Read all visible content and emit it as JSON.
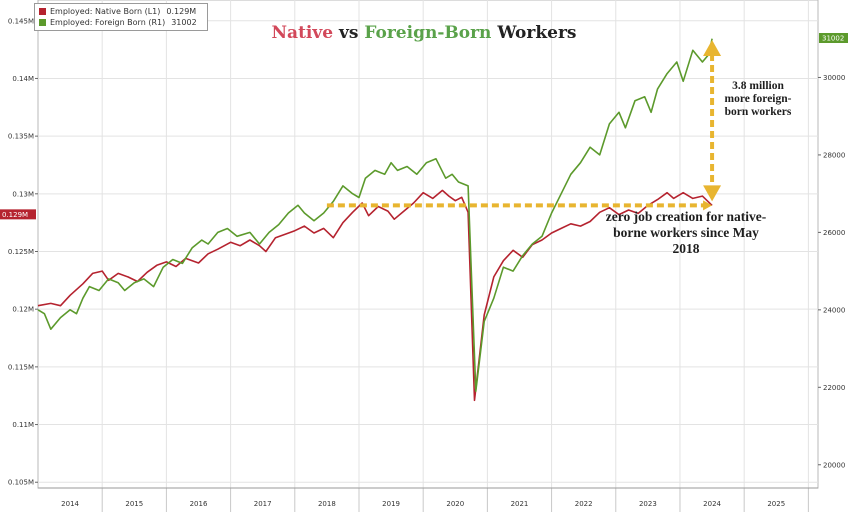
{
  "title": {
    "native_word": "Native",
    "vs_word": "vs",
    "foreign_word": "Foreign-Born",
    "tail_word": "Workers"
  },
  "legend": {
    "entries": [
      {
        "label": "Employed: Native Born (L1)",
        "value": "0.129M",
        "color": "#b5232f"
      },
      {
        "label": "Employed: Foreign Born (R1)",
        "value": "31002",
        "color": "#5c9a2c"
      }
    ]
  },
  "annotations": {
    "more_foreign": "3.8 million more foreign-born workers",
    "zero_native": "zero job creation for native-borne workers since May 2018"
  },
  "current_value_tags": {
    "left": "0.129M",
    "right": "31002"
  },
  "colors": {
    "native_series": "#b5232f",
    "foreign_series": "#5c9a2c",
    "annotation_line": "#e8b530",
    "left_tag_bg": "#b5232f",
    "right_tag_bg": "#5c9a2c"
  },
  "chart_data": {
    "type": "line",
    "x_ticks": [
      "2014",
      "2015",
      "2016",
      "2017",
      "2018",
      "2019",
      "2020",
      "2021",
      "2022",
      "2023",
      "2024",
      "2025"
    ],
    "xlim": [
      2013.5,
      2025.65
    ],
    "y_left": {
      "ticks": [
        0.105,
        0.11,
        0.115,
        0.12,
        0.125,
        0.13,
        0.135,
        0.14,
        0.145
      ],
      "tick_labels": [
        "0.105M",
        "0.11M",
        "0.115M",
        "0.12M",
        "0.125M",
        "0.13M",
        "0.135M",
        "0.14M",
        "0.145M"
      ],
      "range": [
        0.1045,
        0.1468
      ]
    },
    "y_right": {
      "ticks": [
        20000,
        22000,
        24000,
        26000,
        28000,
        30000
      ],
      "tick_labels": [
        "20000",
        "22000",
        "24000",
        "26000",
        "28000",
        "30000"
      ],
      "range": [
        19400,
        32000
      ]
    },
    "grid": true,
    "legend_position": "top-left",
    "series": [
      {
        "name": "Employed: Native Born (L1)",
        "axis": "left",
        "points": [
          [
            2013.5,
            0.1203
          ],
          [
            2013.7,
            0.1205
          ],
          [
            2013.85,
            0.1203
          ],
          [
            2014.0,
            0.1212
          ],
          [
            2014.2,
            0.1222
          ],
          [
            2014.35,
            0.1231
          ],
          [
            2014.5,
            0.1233
          ],
          [
            2014.6,
            0.1225
          ],
          [
            2014.75,
            0.1231
          ],
          [
            2014.9,
            0.1228
          ],
          [
            2015.05,
            0.1224
          ],
          [
            2015.2,
            0.1232
          ],
          [
            2015.35,
            0.1238
          ],
          [
            2015.5,
            0.1241
          ],
          [
            2015.65,
            0.1237
          ],
          [
            2015.8,
            0.1244
          ],
          [
            2016.0,
            0.124
          ],
          [
            2016.15,
            0.1248
          ],
          [
            2016.3,
            0.1252
          ],
          [
            2016.5,
            0.1258
          ],
          [
            2016.65,
            0.1255
          ],
          [
            2016.8,
            0.126
          ],
          [
            2016.95,
            0.1255
          ],
          [
            2017.05,
            0.125
          ],
          [
            2017.2,
            0.1262
          ],
          [
            2017.35,
            0.1265
          ],
          [
            2017.5,
            0.1268
          ],
          [
            2017.65,
            0.1272
          ],
          [
            2017.8,
            0.1266
          ],
          [
            2017.95,
            0.127
          ],
          [
            2018.1,
            0.1262
          ],
          [
            2018.25,
            0.1275
          ],
          [
            2018.4,
            0.1284
          ],
          [
            2018.55,
            0.1292
          ],
          [
            2018.65,
            0.1281
          ],
          [
            2018.8,
            0.1289
          ],
          [
            2018.95,
            0.1285
          ],
          [
            2019.05,
            0.1278
          ],
          [
            2019.2,
            0.1285
          ],
          [
            2019.35,
            0.1292
          ],
          [
            2019.5,
            0.1301
          ],
          [
            2019.65,
            0.1296
          ],
          [
            2019.8,
            0.1303
          ],
          [
            2019.9,
            0.1298
          ],
          [
            2020.0,
            0.1294
          ],
          [
            2020.1,
            0.1297
          ],
          [
            2020.2,
            0.1284
          ],
          [
            2020.3,
            0.1121
          ],
          [
            2020.45,
            0.1195
          ],
          [
            2020.6,
            0.1228
          ],
          [
            2020.75,
            0.1242
          ],
          [
            2020.9,
            0.1251
          ],
          [
            2021.05,
            0.1245
          ],
          [
            2021.2,
            0.1256
          ],
          [
            2021.35,
            0.126
          ],
          [
            2021.5,
            0.1266
          ],
          [
            2021.65,
            0.127
          ],
          [
            2021.8,
            0.1274
          ],
          [
            2021.95,
            0.1272
          ],
          [
            2022.1,
            0.1276
          ],
          [
            2022.25,
            0.1284
          ],
          [
            2022.4,
            0.1288
          ],
          [
            2022.55,
            0.1282
          ],
          [
            2022.7,
            0.1286
          ],
          [
            2022.85,
            0.1283
          ],
          [
            2023.0,
            0.129
          ],
          [
            2023.15,
            0.1295
          ],
          [
            2023.3,
            0.1301
          ],
          [
            2023.4,
            0.1296
          ],
          [
            2023.55,
            0.1301
          ],
          [
            2023.7,
            0.1296
          ],
          [
            2023.85,
            0.1298
          ],
          [
            2024.0,
            0.129
          ]
        ]
      },
      {
        "name": "Employed: Foreign Born (R1)",
        "axis": "right",
        "points": [
          [
            2013.5,
            24000
          ],
          [
            2013.6,
            23900
          ],
          [
            2013.7,
            23500
          ],
          [
            2013.85,
            23800
          ],
          [
            2014.0,
            24000
          ],
          [
            2014.1,
            23900
          ],
          [
            2014.2,
            24300
          ],
          [
            2014.3,
            24600
          ],
          [
            2014.45,
            24500
          ],
          [
            2014.6,
            24800
          ],
          [
            2014.75,
            24700
          ],
          [
            2014.85,
            24500
          ],
          [
            2015.0,
            24700
          ],
          [
            2015.15,
            24800
          ],
          [
            2015.3,
            24600
          ],
          [
            2015.45,
            25100
          ],
          [
            2015.6,
            25300
          ],
          [
            2015.75,
            25200
          ],
          [
            2015.9,
            25600
          ],
          [
            2016.05,
            25800
          ],
          [
            2016.15,
            25700
          ],
          [
            2016.3,
            26000
          ],
          [
            2016.45,
            26100
          ],
          [
            2016.6,
            25900
          ],
          [
            2016.8,
            26000
          ],
          [
            2016.95,
            25700
          ],
          [
            2017.1,
            26000
          ],
          [
            2017.25,
            26200
          ],
          [
            2017.4,
            26500
          ],
          [
            2017.55,
            26700
          ],
          [
            2017.65,
            26500
          ],
          [
            2017.8,
            26300
          ],
          [
            2017.95,
            26500
          ],
          [
            2018.1,
            26800
          ],
          [
            2018.25,
            27200
          ],
          [
            2018.4,
            27000
          ],
          [
            2018.5,
            26900
          ],
          [
            2018.6,
            27400
          ],
          [
            2018.75,
            27600
          ],
          [
            2018.9,
            27500
          ],
          [
            2019.0,
            27800
          ],
          [
            2019.1,
            27600
          ],
          [
            2019.25,
            27700
          ],
          [
            2019.4,
            27500
          ],
          [
            2019.55,
            27800
          ],
          [
            2019.7,
            27900
          ],
          [
            2019.85,
            27400
          ],
          [
            2019.95,
            27500
          ],
          [
            2020.05,
            27300
          ],
          [
            2020.2,
            27200
          ],
          [
            2020.32,
            21900
          ],
          [
            2020.45,
            23700
          ],
          [
            2020.6,
            24300
          ],
          [
            2020.75,
            25100
          ],
          [
            2020.9,
            25000
          ],
          [
            2021.05,
            25400
          ],
          [
            2021.2,
            25700
          ],
          [
            2021.35,
            25900
          ],
          [
            2021.5,
            26500
          ],
          [
            2021.65,
            27000
          ],
          [
            2021.8,
            27500
          ],
          [
            2021.95,
            27800
          ],
          [
            2022.1,
            28200
          ],
          [
            2022.25,
            28000
          ],
          [
            2022.4,
            28800
          ],
          [
            2022.55,
            29100
          ],
          [
            2022.65,
            28700
          ],
          [
            2022.8,
            29400
          ],
          [
            2022.95,
            29500
          ],
          [
            2023.05,
            29100
          ],
          [
            2023.15,
            29700
          ],
          [
            2023.3,
            30100
          ],
          [
            2023.45,
            30400
          ],
          [
            2023.55,
            29900
          ],
          [
            2023.7,
            30700
          ],
          [
            2023.85,
            30400
          ],
          [
            2023.95,
            30600
          ],
          [
            2024.0,
            31002
          ]
        ]
      }
    ]
  }
}
